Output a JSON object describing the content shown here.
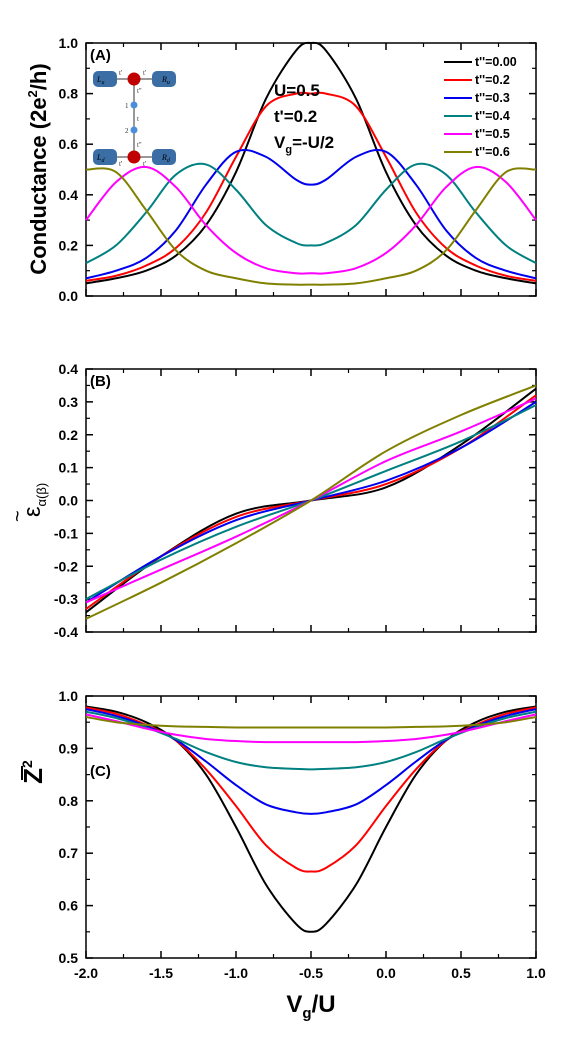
{
  "figure": {
    "xlabel_main": "V",
    "xlabel_sub": "g",
    "xlabel_rest": "/U",
    "annotation": {
      "line1": "U=0.5",
      "line2": "t'=0.2",
      "line3_main": "V",
      "line3_sub": "g",
      "line3_rest": "=-U/2"
    },
    "inset": {
      "lu": "L",
      "lu_sub": "u",
      "ld": "L",
      "ld_sub": "d",
      "ru": "R",
      "ru_sub": "u",
      "rd": "R",
      "rd_sub": "d",
      "tp": "t'",
      "tpp": "t''",
      "t": "t",
      "n1": "1",
      "n2": "2"
    }
  },
  "colors": {
    "t0.00": "#000000",
    "t0.2": "#ff0000",
    "t0.3": "#0000ee",
    "t0.4": "#008080",
    "t0.5": "#ff00ff",
    "t0.6": "#808000"
  },
  "chart_data": [
    {
      "type": "line",
      "panel": "(A)",
      "ylabel": "Conductance (2e²/h)",
      "ylabel_parts": {
        "a": "Conductance (2e",
        "sup": "2",
        "b": "/h)"
      },
      "xlim": [
        -2.0,
        1.0
      ],
      "ylim": [
        0.0,
        1.0
      ],
      "yticks": [
        "0.0",
        "0.2",
        "0.4",
        "0.6",
        "0.8",
        "1.0"
      ],
      "ytick_values": [
        0.0,
        0.2,
        0.4,
        0.6,
        0.8,
        1.0
      ],
      "legend_position": "top-right",
      "x": [
        -2.0,
        -1.8,
        -1.6,
        -1.4,
        -1.2,
        -1.0,
        -0.8,
        -0.6,
        -0.5,
        -0.4,
        -0.2,
        0.0,
        0.2,
        0.4,
        0.6,
        0.8,
        1.0
      ],
      "series": [
        {
          "name": "t''=0.00",
          "color_key": "t0.00",
          "values": [
            0.05,
            0.07,
            0.1,
            0.16,
            0.28,
            0.49,
            0.78,
            0.97,
            1.0,
            0.97,
            0.78,
            0.49,
            0.28,
            0.16,
            0.1,
            0.07,
            0.05
          ]
        },
        {
          "name": "t''=0.2",
          "color_key": "t0.2",
          "values": [
            0.06,
            0.08,
            0.12,
            0.19,
            0.33,
            0.55,
            0.75,
            0.8,
            0.8,
            0.8,
            0.75,
            0.55,
            0.33,
            0.19,
            0.12,
            0.08,
            0.06
          ]
        },
        {
          "name": "t''=0.3",
          "color_key": "t0.3",
          "values": [
            0.07,
            0.1,
            0.15,
            0.26,
            0.44,
            0.57,
            0.55,
            0.46,
            0.44,
            0.46,
            0.55,
            0.57,
            0.44,
            0.26,
            0.15,
            0.1,
            0.07
          ]
        },
        {
          "name": "t''=0.4",
          "color_key": "t0.4",
          "values": [
            0.13,
            0.2,
            0.33,
            0.48,
            0.52,
            0.42,
            0.28,
            0.21,
            0.2,
            0.21,
            0.28,
            0.42,
            0.52,
            0.48,
            0.33,
            0.2,
            0.13
          ]
        },
        {
          "name": "t''=0.5",
          "color_key": "t0.5",
          "values": [
            0.3,
            0.45,
            0.51,
            0.43,
            0.28,
            0.17,
            0.11,
            0.09,
            0.09,
            0.09,
            0.11,
            0.17,
            0.28,
            0.43,
            0.51,
            0.45,
            0.3
          ]
        },
        {
          "name": "t''=0.6",
          "color_key": "t0.6",
          "values": [
            0.5,
            0.49,
            0.34,
            0.18,
            0.1,
            0.07,
            0.05,
            0.045,
            0.045,
            0.045,
            0.05,
            0.07,
            0.1,
            0.18,
            0.34,
            0.49,
            0.5
          ]
        }
      ]
    },
    {
      "type": "line",
      "panel": "(B)",
      "ylabel_symbol": "ε",
      "ylabel_tilde": "~",
      "ylabel_sub": "α(β)",
      "xlim": [
        -2.0,
        1.0
      ],
      "ylim": [
        -0.4,
        0.4
      ],
      "yticks": [
        "-0.4",
        "-0.3",
        "-0.2",
        "-0.1",
        "0.0",
        "0.1",
        "0.2",
        "0.3",
        "0.4"
      ],
      "ytick_values": [
        -0.4,
        -0.3,
        -0.2,
        -0.1,
        0.0,
        0.1,
        0.2,
        0.3,
        0.4
      ],
      "x": [
        -2.0,
        -1.5,
        -1.0,
        -0.5,
        0.0,
        0.5,
        1.0
      ],
      "series": [
        {
          "color_key": "t0.00",
          "values": [
            -0.34,
            -0.17,
            -0.04,
            0.0,
            0.04,
            0.17,
            0.34
          ]
        },
        {
          "color_key": "t0.2",
          "values": [
            -0.33,
            -0.17,
            -0.05,
            0.0,
            0.05,
            0.16,
            0.32
          ]
        },
        {
          "color_key": "t0.3",
          "values": [
            -0.31,
            -0.17,
            -0.06,
            0.0,
            0.06,
            0.16,
            0.3
          ]
        },
        {
          "color_key": "t0.4",
          "values": [
            -0.3,
            -0.18,
            -0.08,
            0.0,
            0.09,
            0.18,
            0.29
          ]
        },
        {
          "color_key": "t0.5",
          "values": [
            -0.31,
            -0.21,
            -0.11,
            0.0,
            0.12,
            0.21,
            0.31
          ]
        },
        {
          "color_key": "t0.6",
          "values": [
            -0.36,
            -0.25,
            -0.13,
            0.0,
            0.15,
            0.26,
            0.35
          ]
        }
      ]
    },
    {
      "type": "line",
      "panel": "(C)",
      "ylabel_main": "Z",
      "ylabel_sup": "2",
      "xlim": [
        -2.0,
        1.0
      ],
      "ylim": [
        0.5,
        1.0
      ],
      "yticks": [
        "0.5",
        "0.6",
        "0.7",
        "0.8",
        "0.9",
        "1.0"
      ],
      "ytick_values": [
        0.5,
        0.6,
        0.7,
        0.8,
        0.9,
        1.0
      ],
      "x": [
        -2.0,
        -1.8,
        -1.6,
        -1.4,
        -1.2,
        -1.0,
        -0.8,
        -0.6,
        -0.5,
        -0.4,
        -0.2,
        0.0,
        0.2,
        0.4,
        0.6,
        0.8,
        1.0
      ],
      "series": [
        {
          "color_key": "t0.00",
          "values": [
            0.98,
            0.97,
            0.95,
            0.915,
            0.85,
            0.75,
            0.64,
            0.565,
            0.55,
            0.565,
            0.64,
            0.75,
            0.85,
            0.915,
            0.95,
            0.97,
            0.98
          ]
        },
        {
          "color_key": "t0.2",
          "values": [
            0.978,
            0.966,
            0.945,
            0.915,
            0.86,
            0.79,
            0.715,
            0.672,
            0.665,
            0.672,
            0.715,
            0.79,
            0.86,
            0.915,
            0.945,
            0.966,
            0.978
          ]
        },
        {
          "color_key": "t0.3",
          "values": [
            0.975,
            0.962,
            0.943,
            0.916,
            0.875,
            0.83,
            0.793,
            0.778,
            0.775,
            0.778,
            0.793,
            0.83,
            0.875,
            0.916,
            0.943,
            0.962,
            0.975
          ]
        },
        {
          "color_key": "t0.4",
          "values": [
            0.97,
            0.958,
            0.94,
            0.918,
            0.893,
            0.874,
            0.864,
            0.861,
            0.86,
            0.861,
            0.864,
            0.874,
            0.893,
            0.918,
            0.94,
            0.958,
            0.97
          ]
        },
        {
          "color_key": "t0.5",
          "values": [
            0.965,
            0.952,
            0.938,
            0.926,
            0.918,
            0.914,
            0.912,
            0.912,
            0.912,
            0.912,
            0.912,
            0.914,
            0.918,
            0.926,
            0.938,
            0.952,
            0.965
          ]
        },
        {
          "color_key": "t0.6",
          "values": [
            0.96,
            0.95,
            0.945,
            0.942,
            0.941,
            0.94,
            0.94,
            0.94,
            0.94,
            0.94,
            0.94,
            0.94,
            0.941,
            0.942,
            0.945,
            0.95,
            0.96
          ]
        }
      ]
    }
  ]
}
